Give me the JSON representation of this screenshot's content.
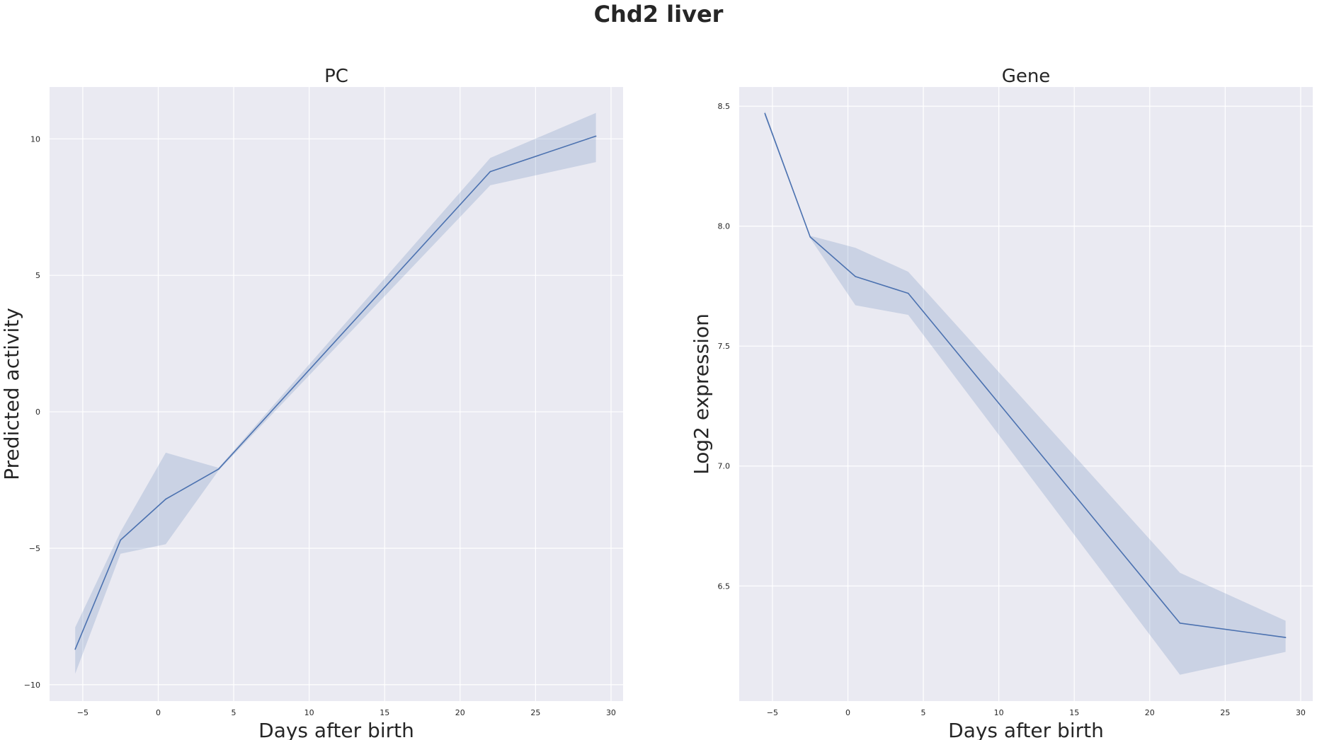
{
  "figure": {
    "title": "Chd2 liver"
  },
  "colors": {
    "series": "#4c72b0",
    "background": "#eaeaf2",
    "grid": "#ffffff"
  },
  "chart_data": [
    {
      "type": "line",
      "title": "PC",
      "xlabel": "Days after birth",
      "ylabel": "Predicted activity",
      "xlim": [
        -7.2,
        30.8
      ],
      "ylim": [
        -10.6,
        11.9
      ],
      "xticks": [
        -5,
        0,
        5,
        10,
        15,
        20,
        25,
        30
      ],
      "yticks": [
        -10,
        -5,
        0,
        5,
        10
      ],
      "xtick_labels": [
        "−5",
        "0",
        "5",
        "10",
        "15",
        "20",
        "25",
        "30"
      ],
      "ytick_labels": [
        "−10",
        "−5",
        "0",
        "5",
        "10"
      ],
      "grid": true,
      "series": [
        {
          "x": [
            -5.5,
            -2.5,
            0.5,
            4,
            22,
            29
          ],
          "y": [
            -8.7,
            -4.7,
            -3.2,
            -2.1,
            8.8,
            10.1
          ],
          "ci_lower": [
            -9.6,
            -5.2,
            -4.85,
            -2.15,
            8.3,
            9.15
          ],
          "ci_upper": [
            -7.9,
            -4.4,
            -1.5,
            -2.05,
            9.3,
            10.95
          ]
        }
      ]
    },
    {
      "type": "line",
      "title": "Gene",
      "xlabel": "Days after birth",
      "ylabel": "Log2 expression",
      "xlim": [
        -7.2,
        30.8
      ],
      "ylim": [
        6.02,
        8.58
      ],
      "xticks": [
        -5,
        0,
        5,
        10,
        15,
        20,
        25,
        30
      ],
      "yticks": [
        6.5,
        7.0,
        7.5,
        8.0,
        8.5
      ],
      "xtick_labels": [
        "−5",
        "0",
        "5",
        "10",
        "15",
        "20",
        "25",
        "30"
      ],
      "ytick_labels": [
        "6.5",
        "7.0",
        "7.5",
        "8.0",
        "8.5"
      ],
      "grid": true,
      "series": [
        {
          "x": [
            -5.5,
            -2.5,
            0.5,
            4,
            22,
            29
          ],
          "y": [
            8.47,
            7.955,
            7.79,
            7.72,
            6.345,
            6.285
          ],
          "ci_lower": [
            8.46,
            7.95,
            7.67,
            7.63,
            6.13,
            6.225
          ],
          "ci_upper": [
            8.48,
            7.96,
            7.91,
            7.81,
            6.555,
            6.355
          ]
        }
      ]
    }
  ]
}
